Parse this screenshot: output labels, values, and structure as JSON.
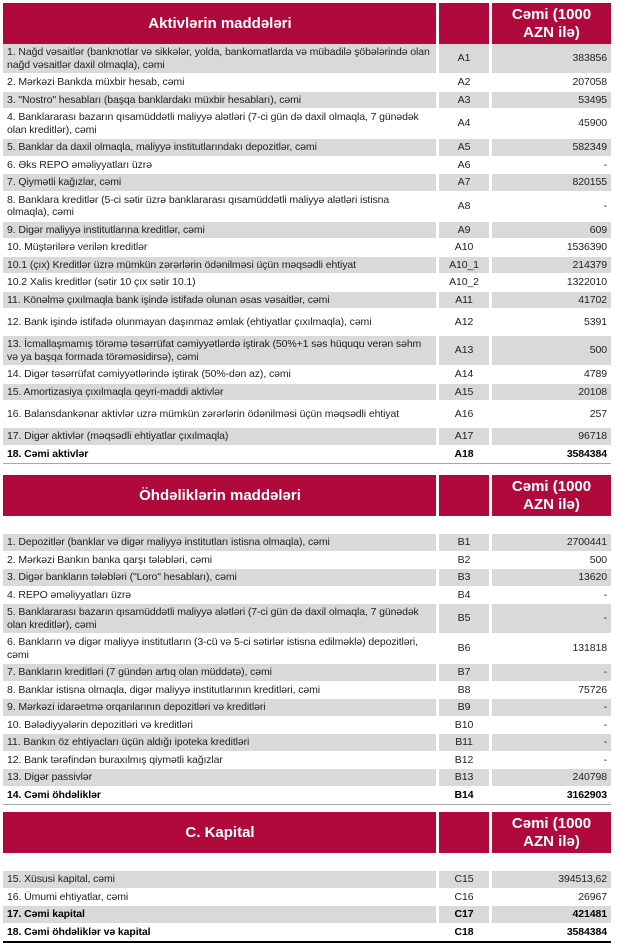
{
  "brand_color": "#b00a3c",
  "stripe_color": "#d9d9d9",
  "units_label": "Cəmi (1000 AZN ilə)",
  "sections": [
    {
      "title": "Aktivlərin maddələri",
      "rows": [
        {
          "label": "1. Nağd vəsaitlər (banknotlar və sikkələr, yolda, bankomatlarda və mübadilə şöbələrində olan nağd vəsaitlər daxil olmaqla), cəmi",
          "code": "A1",
          "value": "383856",
          "shaded": true,
          "bold": false,
          "tall": false
        },
        {
          "label": "2. Mərkəzi Bankda müxbir hesab, cəmi",
          "code": "A2",
          "value": "207058",
          "shaded": false,
          "bold": false,
          "tall": false
        },
        {
          "label": "3. \"Nostro\" hesabları (başqa banklardakı müxbir hesabları), cəmi",
          "code": "A3",
          "value": "53495",
          "shaded": true,
          "bold": false,
          "tall": false
        },
        {
          "label": "4. Banklararası bazarın qısamüddətli maliyyə alətləri (7-ci gün də daxil olmaqla, 7 günədək olan kreditlər), cəmi",
          "code": "A4",
          "value": "45900",
          "shaded": false,
          "bold": false,
          "tall": false
        },
        {
          "label": "5. Banklar da daxil olmaqla, maliyyə institutlarındakı depozitlər, cəmi",
          "code": "A5",
          "value": "582349",
          "shaded": true,
          "bold": false,
          "tall": false
        },
        {
          "label": "6. Əks REPO əməliyyatları üzrə",
          "code": "A6",
          "value": "-",
          "shaded": false,
          "bold": false,
          "tall": false
        },
        {
          "label": "7. Qiymətli kağızlar, cəmi",
          "code": "A7",
          "value": "820155",
          "shaded": true,
          "bold": false,
          "tall": false
        },
        {
          "label": "8. Banklara kreditlər (5-ci sətir üzrə banklararası qısamüddətli maliyyə alətləri istisna olmaqla), cəmi",
          "code": "A8",
          "value": "-",
          "shaded": false,
          "bold": false,
          "tall": false
        },
        {
          "label": "9. Digər maliyyə institutlarına kreditlər, cəmi",
          "code": "A9",
          "value": "609",
          "shaded": true,
          "bold": false,
          "tall": false
        },
        {
          "label": "10. Müştərilərə verilən kreditlər",
          "code": "A10",
          "value": "1536390",
          "shaded": false,
          "bold": false,
          "tall": false
        },
        {
          "label": "10.1 (çıx) Kreditlər üzrə mümkün zərərlərin ödənilməsi üçün məqsədli ehtiyat",
          "code": "A10_1",
          "value": "214379",
          "shaded": true,
          "bold": false,
          "tall": false
        },
        {
          "label": "10.2 Xalis kreditlər (sətir 10 çıx sətir 10.1)",
          "code": "A10_2",
          "value": "1322010",
          "shaded": false,
          "bold": false,
          "tall": false
        },
        {
          "label": "11. Könəlmə çıxılmaqla bank işində istifadə olunan əsas vəsaitlər, cəmi",
          "code": "A11",
          "value": "41702",
          "shaded": true,
          "bold": false,
          "tall": false
        },
        {
          "label": "12. Bank işində istifadə olunmayan daşınmaz əmlak (ehtiyatlar çıxılmaqla), cəmi",
          "code": "A12",
          "value": "5391",
          "shaded": false,
          "bold": false,
          "tall": true
        },
        {
          "label": "13. İcmallaşmamış törəmə təsərrüfat cəmiyyətlərdə iştirak (50%+1 səs hüququ verən səhm və ya başqa formada törəməsidirsə), cəmi",
          "code": "A13",
          "value": "500",
          "shaded": true,
          "bold": false,
          "tall": false
        },
        {
          "label": "14. Digər təsərrüfat cəmiyyətlərində iştirak (50%-dən az), cəmi",
          "code": "A14",
          "value": "4789",
          "shaded": false,
          "bold": false,
          "tall": false
        },
        {
          "label": "15. Amortizasiya çıxılmaqla qeyri-maddi aktivlər",
          "code": "A15",
          "value": "20108",
          "shaded": true,
          "bold": false,
          "tall": false
        },
        {
          "label": "16. Balansdankənar aktivlər uzrə mümkün zərərlərin ödənilməsi üçün məqsədli ehtiyat",
          "code": "A16",
          "value": "257",
          "shaded": false,
          "bold": false,
          "tall": true
        },
        {
          "label": "17. Digər aktivlər (məqsədli ehtiyatlar çıxılmaqla)",
          "code": "A17",
          "value": "96718",
          "shaded": true,
          "bold": false,
          "tall": false
        },
        {
          "label": "18. Cəmi aktivlər",
          "code": "A18",
          "value": "3584384",
          "shaded": false,
          "bold": true,
          "tall": false
        }
      ]
    },
    {
      "title": "Öhdəliklərin maddələri",
      "rows": [
        {
          "label": "1. Depozitlər (banklar və digər maliyyə institutları istisna olmaqla), cəmi",
          "code": "B1",
          "value": "2700441",
          "shaded": true,
          "bold": false,
          "tall": false
        },
        {
          "label": "2. Mərkəzi Bankın banka qarşı tələbləri, cəmi",
          "code": "B2",
          "value": "500",
          "shaded": false,
          "bold": false,
          "tall": false
        },
        {
          "label": "3. Digər bankların tələbləri (\"Loro\" hesabları), cəmi",
          "code": "B3",
          "value": "13620",
          "shaded": true,
          "bold": false,
          "tall": false
        },
        {
          "label": "4. REPO əməliyyatları üzrə",
          "code": "B4",
          "value": "-",
          "shaded": false,
          "bold": false,
          "tall": false
        },
        {
          "label": "5. Banklararası bazarın qısamüddətli maliyyə alətləri (7-ci gün də daxil olmaqla, 7 günədək olan kreditlər), cəmi",
          "code": "B5",
          "value": "-",
          "shaded": true,
          "bold": false,
          "tall": false
        },
        {
          "label": "6. Bankların və digər maliyyə institutların (3-cü və 5-ci sətirlər istisna edilməklə) depozitləri, cəmi",
          "code": "B6",
          "value": "131818",
          "shaded": false,
          "bold": false,
          "tall": false
        },
        {
          "label": "7. Bankların kreditləri (7 gündən artıq olan müddətə), cəmi",
          "code": "B7",
          "value": "-",
          "shaded": true,
          "bold": false,
          "tall": false
        },
        {
          "label": "8. Banklar istisna olmaqla, digər maliyyə institutlarının kreditləri, cəmi",
          "code": "B8",
          "value": "75726",
          "shaded": false,
          "bold": false,
          "tall": false
        },
        {
          "label": "9. Mərkəzi idarəetmə orqanlarının depozitləri və kreditləri",
          "code": "B9",
          "value": "-",
          "shaded": true,
          "bold": false,
          "tall": false
        },
        {
          "label": "10. Bələdiyyələrin depozitləri və kreditləri",
          "code": "B10",
          "value": "-",
          "shaded": false,
          "bold": false,
          "tall": false
        },
        {
          "label": "11. Bankın öz ehtiyacları üçün aldığı ipoteka kreditləri",
          "code": "B11",
          "value": "-",
          "shaded": true,
          "bold": false,
          "tall": false
        },
        {
          "label": "12. Bank tərəfindən buraxılmış qiymətli kağızlar",
          "code": "B12",
          "value": "-",
          "shaded": false,
          "bold": false,
          "tall": false
        },
        {
          "label": "13. Digər passivlər",
          "code": "B13",
          "value": "240798",
          "shaded": true,
          "bold": false,
          "tall": false
        },
        {
          "label": "14. Cəmi öhdəliklər",
          "code": "B14",
          "value": "3162903",
          "shaded": false,
          "bold": true,
          "tall": false
        }
      ]
    },
    {
      "title": "C. Kapital",
      "rows": [
        {
          "label": "15. Xüsusi kapital, cəmi",
          "code": "C15",
          "value": "394513,62",
          "shaded": true,
          "bold": false,
          "tall": false
        },
        {
          "label": "16. Ümumi ehtiyatlar, cəmi",
          "code": "C16",
          "value": "26967",
          "shaded": false,
          "bold": false,
          "tall": false
        },
        {
          "label": "17. Cəmi kapital",
          "code": "C17",
          "value": "421481",
          "shaded": true,
          "bold": true,
          "tall": false
        },
        {
          "label": "18. Cəmi öhdəliklər və kapital",
          "code": "C18",
          "value": "3584384",
          "shaded": false,
          "bold": true,
          "tall": false
        }
      ]
    }
  ]
}
